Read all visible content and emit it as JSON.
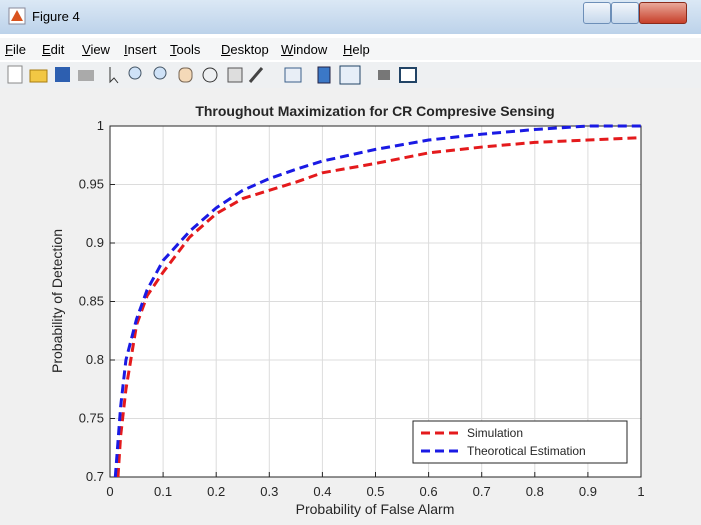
{
  "window": {
    "title": "Figure 4",
    "menu": [
      "File",
      "Edit",
      "View",
      "Insert",
      "Tools",
      "Desktop",
      "Window",
      "Help"
    ]
  },
  "chart_data": {
    "type": "line",
    "title": "Throughout Maximization for  CR Compresive Sensing",
    "xlabel": "Probability of False Alarm",
    "ylabel": "Probability of Detection",
    "x": [
      0.01,
      0.015,
      0.02,
      0.03,
      0.05,
      0.07,
      0.1,
      0.15,
      0.2,
      0.25,
      0.3,
      0.35,
      0.4,
      0.5,
      0.6,
      0.7,
      0.8,
      0.9,
      1.0
    ],
    "series": [
      {
        "name": "Simulation",
        "color": "#e41a1c",
        "values": [
          null,
          0.7,
          0.735,
          0.775,
          0.83,
          0.855,
          0.875,
          0.905,
          0.925,
          0.938,
          0.945,
          0.952,
          0.96,
          0.968,
          0.977,
          0.982,
          0.986,
          0.988,
          0.99
        ]
      },
      {
        "name": "Theorotical Estimation",
        "color": "#1a1ae4",
        "values": [
          0.7,
          0.73,
          0.76,
          0.8,
          0.835,
          0.86,
          0.885,
          0.91,
          0.93,
          0.945,
          0.955,
          0.963,
          0.97,
          0.98,
          0.988,
          0.993,
          0.997,
          1.0,
          1.0
        ]
      }
    ],
    "xlim": [
      0,
      1
    ],
    "xticks": [
      0,
      0.1,
      0.2,
      0.3,
      0.4,
      0.5,
      0.6,
      0.7,
      0.8,
      0.9,
      1
    ],
    "ylim": [
      0.7,
      1
    ],
    "yticks": [
      0.7,
      0.75,
      0.8,
      0.85,
      0.9,
      0.95,
      1
    ],
    "grid": true,
    "legend": "lower right"
  }
}
